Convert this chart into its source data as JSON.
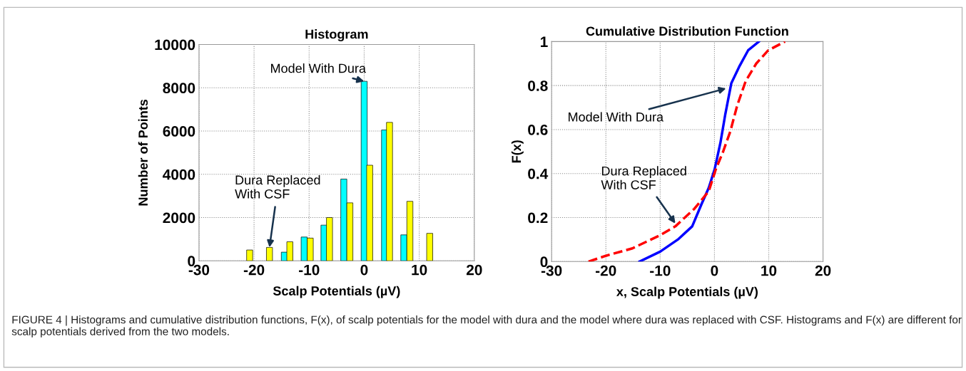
{
  "chart_data": [
    {
      "type": "bar",
      "title": "Histogram",
      "xlabel": "Scalp Potentials (µV)",
      "ylabel": "Number of Points",
      "xlim": [
        -30,
        20
      ],
      "xticks": [
        -30,
        -20,
        -10,
        0,
        10,
        20
      ],
      "ylim": [
        0,
        10000
      ],
      "yticks": [
        0,
        2000,
        4000,
        6000,
        8000,
        10000
      ],
      "grid": true,
      "series": [
        {
          "color": "#00ffff",
          "x": [
            -14.5,
            -10.9,
            -7.3,
            -3.7,
            0,
            3.7,
            7.2
          ],
          "values": [
            400,
            1100,
            1650,
            3780,
            8300,
            6050,
            1200
          ]
        },
        {
          "color": "#ffff00",
          "x": [
            -20.8,
            -17.2,
            -13.5,
            -9.8,
            -6.3,
            -2.6,
            1.0,
            4.6,
            8.3,
            11.9
          ],
          "values": [
            500,
            620,
            880,
            1050,
            2000,
            2680,
            4420,
            6400,
            2750,
            1270
          ]
        }
      ],
      "annotations": [
        {
          "text": "Model With Dura",
          "x": 0,
          "y": 8300
        },
        {
          "text": "Dura Replaced\nWith CSF",
          "x": -17.2,
          "y": 620
        },
        "FIGURE 4 | Histograms and cumulative distribution functions, F(x), of scalp potentials for the model with dura and the model where dura was replaced with CSF. Histograms and F(x) are different for scalp potentials derived from the two models."
      ]
    },
    {
      "type": "line",
      "title": "Cumulative Distribution Function",
      "xlabel": "x, Scalp Potentials (µV)",
      "ylabel": "F(x)",
      "xlim": [
        -30,
        20
      ],
      "xticks": [
        -30,
        -20,
        -10,
        0,
        10,
        20
      ],
      "ylim": [
        0,
        1
      ],
      "yticks": [
        0,
        0.2,
        0.4,
        0.6,
        0.8,
        1
      ],
      "grid": true,
      "series": [
        {
          "color": "#0000ff",
          "line_style": "solid",
          "x": [
            -13.8,
            -10.0,
            -6.75,
            -4.1,
            -2.4,
            -1.05,
            0.04,
            1.1,
            2.0,
            3.1,
            4.65,
            6.2,
            8.2
          ],
          "values": [
            0.0,
            0.045,
            0.1,
            0.16,
            0.26,
            0.335,
            0.42,
            0.54,
            0.67,
            0.81,
            0.89,
            0.96,
            1.0
          ]
        },
        {
          "color": "#ff0000",
          "line_style": "dashed",
          "x": [
            -23.2,
            -19.9,
            -15.1,
            -10.0,
            -7.2,
            -3.7,
            -1.05,
            0.26,
            1.6,
            2.9,
            4.2,
            5.75,
            7.7,
            9.9,
            13.0
          ],
          "values": [
            0.0,
            0.027,
            0.06,
            0.12,
            0.16,
            0.24,
            0.32,
            0.42,
            0.5,
            0.59,
            0.71,
            0.82,
            0.9,
            0.96,
            1.0
          ]
        }
      ],
      "annotations": [
        {
          "text": "Model With Dura",
          "x": 2.15,
          "y": 0.787
        },
        {
          "text": "Dura Replaced\nWith CSF",
          "x": -7.2,
          "y": 0.173
        }
      ]
    }
  ]
}
